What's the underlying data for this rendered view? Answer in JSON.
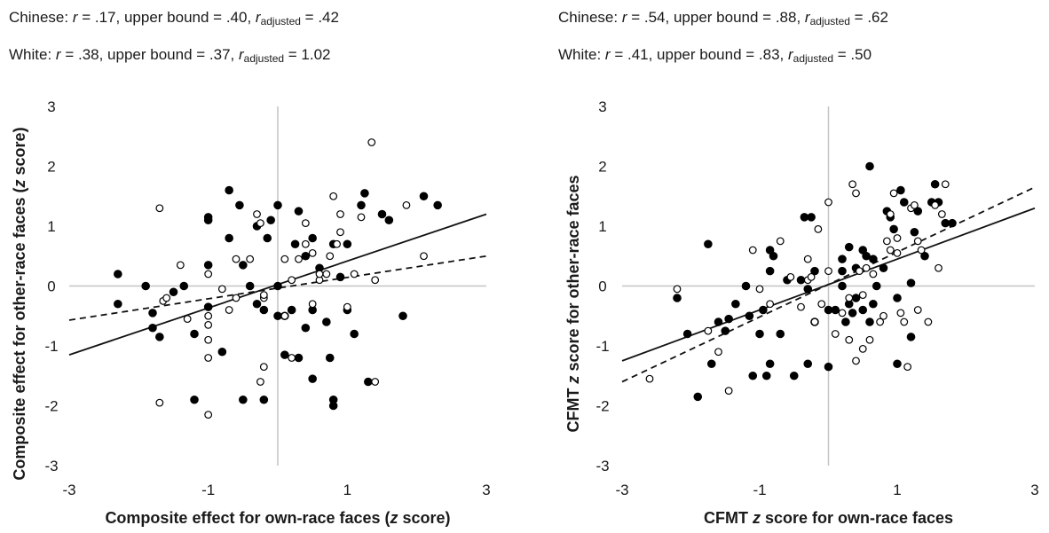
{
  "panels": [
    {
      "stats": [
        {
          "group": "Chinese",
          "r": ".17",
          "upper": ".40",
          "radj": ".42"
        },
        {
          "group": "White",
          "r": ".38",
          "upper": ".37",
          "radj": "1.02"
        }
      ],
      "labels": {
        "r": "r",
        "eq": " = ",
        "upper": ", upper bound = ",
        "adj_sub": "adjusted"
      }
    },
    {
      "stats": [
        {
          "group": "Chinese",
          "r": ".54",
          "upper": ".88",
          "radj": ".62"
        },
        {
          "group": "White",
          "r": ".41",
          "upper": ".83",
          "radj": ".50"
        }
      ],
      "labels": {
        "r": "r",
        "eq": " = ",
        "upper": ", upper bound = ",
        "adj_sub": "adjusted"
      }
    }
  ],
  "chart_data": [
    {
      "type": "scatter",
      "xlabel": "Composite effect for own-race faces (z score)",
      "ylabel": "Composite effect for other-race faces (z score)",
      "xlim": [
        -3,
        3
      ],
      "ylim": [
        -3,
        3
      ],
      "xticks": [
        -3,
        -1,
        1,
        3
      ],
      "yticks": [
        3,
        2,
        1,
        0,
        -1,
        -2,
        -3
      ],
      "series": [
        {
          "marker": "filled",
          "points": [
            [
              -2.3,
              0.2
            ],
            [
              -2.3,
              -0.3
            ],
            [
              -1.9,
              0.0
            ],
            [
              -1.8,
              -0.45
            ],
            [
              -1.8,
              -0.7
            ],
            [
              -1.7,
              -0.85
            ],
            [
              -1.5,
              -0.1
            ],
            [
              -1.35,
              0.0
            ],
            [
              -1.2,
              -1.9
            ],
            [
              -1.2,
              -0.8
            ],
            [
              -1.0,
              1.15
            ],
            [
              -1.0,
              1.1
            ],
            [
              -1.0,
              0.35
            ],
            [
              -1.0,
              -0.35
            ],
            [
              -0.8,
              -1.1
            ],
            [
              -0.7,
              1.6
            ],
            [
              -0.7,
              0.8
            ],
            [
              -0.55,
              1.35
            ],
            [
              -0.5,
              0.35
            ],
            [
              -0.5,
              -1.9
            ],
            [
              -0.4,
              0.0
            ],
            [
              -0.3,
              -0.3
            ],
            [
              -0.3,
              1.0
            ],
            [
              -0.2,
              -1.9
            ],
            [
              -0.2,
              -0.4
            ],
            [
              -0.15,
              0.8
            ],
            [
              -0.1,
              1.1
            ],
            [
              0.0,
              1.35
            ],
            [
              0.0,
              0.0
            ],
            [
              0.0,
              -0.5
            ],
            [
              0.1,
              -0.5
            ],
            [
              0.1,
              -1.15
            ],
            [
              0.2,
              -0.4
            ],
            [
              0.25,
              0.7
            ],
            [
              0.3,
              -1.2
            ],
            [
              0.3,
              1.25
            ],
            [
              0.4,
              -0.7
            ],
            [
              0.4,
              0.5
            ],
            [
              0.5,
              -1.55
            ],
            [
              0.5,
              -0.4
            ],
            [
              0.5,
              0.8
            ],
            [
              0.6,
              0.3
            ],
            [
              0.7,
              -0.6
            ],
            [
              0.75,
              -1.2
            ],
            [
              0.8,
              -1.9
            ],
            [
              0.8,
              -2.0
            ],
            [
              0.8,
              0.7
            ],
            [
              0.9,
              0.15
            ],
            [
              1.0,
              0.7
            ],
            [
              1.0,
              -0.4
            ],
            [
              1.1,
              -0.8
            ],
            [
              1.2,
              1.35
            ],
            [
              1.25,
              1.55
            ],
            [
              1.3,
              -1.6
            ],
            [
              1.5,
              1.2
            ],
            [
              1.6,
              1.1
            ],
            [
              1.8,
              -0.5
            ],
            [
              2.1,
              1.5
            ],
            [
              2.3,
              1.35
            ]
          ]
        },
        {
          "marker": "open",
          "points": [
            [
              -1.7,
              1.3
            ],
            [
              -1.7,
              -1.95
            ],
            [
              -1.65,
              -0.25
            ],
            [
              -1.6,
              -0.2
            ],
            [
              -1.4,
              0.35
            ],
            [
              -1.3,
              -0.55
            ],
            [
              -1.0,
              -0.5
            ],
            [
              -1.0,
              -0.65
            ],
            [
              -1.0,
              0.2
            ],
            [
              -1.0,
              -0.9
            ],
            [
              -1.0,
              -1.2
            ],
            [
              -1.0,
              -2.15
            ],
            [
              -0.8,
              -0.05
            ],
            [
              -0.7,
              -0.4
            ],
            [
              -0.6,
              0.45
            ],
            [
              -0.6,
              -0.2
            ],
            [
              -0.4,
              0.45
            ],
            [
              -0.3,
              1.2
            ],
            [
              -0.25,
              1.05
            ],
            [
              -0.2,
              -0.2
            ],
            [
              -0.2,
              -0.15
            ],
            [
              -0.2,
              -1.35
            ],
            [
              -0.25,
              -1.6
            ],
            [
              0.1,
              0.45
            ],
            [
              0.1,
              -0.5
            ],
            [
              0.2,
              0.1
            ],
            [
              0.2,
              -1.2
            ],
            [
              0.3,
              0.45
            ],
            [
              0.4,
              1.05
            ],
            [
              0.4,
              0.7
            ],
            [
              0.5,
              -0.3
            ],
            [
              0.5,
              0.55
            ],
            [
              0.6,
              0.1
            ],
            [
              0.6,
              0.2
            ],
            [
              0.7,
              0.2
            ],
            [
              0.75,
              0.5
            ],
            [
              0.8,
              1.5
            ],
            [
              0.85,
              0.7
            ],
            [
              0.9,
              1.2
            ],
            [
              0.9,
              0.9
            ],
            [
              1.0,
              -0.35
            ],
            [
              1.1,
              0.2
            ],
            [
              1.2,
              1.15
            ],
            [
              1.35,
              2.4
            ],
            [
              1.4,
              -1.6
            ],
            [
              1.4,
              0.1
            ],
            [
              1.85,
              1.35
            ],
            [
              2.1,
              0.5
            ]
          ]
        }
      ],
      "fit_lines": [
        {
          "style": "solid",
          "from": [
            -3,
            -1.15
          ],
          "to": [
            3,
            1.2
          ]
        },
        {
          "style": "dashed",
          "from": [
            -3,
            -0.57
          ],
          "to": [
            3,
            0.5
          ]
        }
      ]
    },
    {
      "type": "scatter",
      "xlabel": "CFMT z score for own-race faces",
      "ylabel": "CFMT z score for other-race faces",
      "xlim": [
        -3,
        3
      ],
      "ylim": [
        -3,
        3
      ],
      "xticks": [
        -3,
        -1,
        1,
        3
      ],
      "yticks": [
        3,
        2,
        1,
        0,
        -1,
        -2,
        -3
      ],
      "series": [
        {
          "marker": "filled",
          "points": [
            [
              -2.2,
              -0.2
            ],
            [
              -2.05,
              -0.8
            ],
            [
              -1.9,
              -1.85
            ],
            [
              -1.75,
              0.7
            ],
            [
              -1.7,
              -1.3
            ],
            [
              -1.6,
              -0.6
            ],
            [
              -1.5,
              -0.75
            ],
            [
              -1.45,
              -0.55
            ],
            [
              -1.35,
              -0.3
            ],
            [
              -1.2,
              0.0
            ],
            [
              -1.15,
              -0.5
            ],
            [
              -1.1,
              -1.5
            ],
            [
              -1.0,
              -0.8
            ],
            [
              -0.95,
              -0.4
            ],
            [
              -0.9,
              -1.5
            ],
            [
              -0.85,
              -1.3
            ],
            [
              -0.85,
              0.6
            ],
            [
              -0.85,
              0.25
            ],
            [
              -0.8,
              0.5
            ],
            [
              -0.7,
              -0.8
            ],
            [
              -0.6,
              0.1
            ],
            [
              -0.5,
              -1.5
            ],
            [
              -0.4,
              0.1
            ],
            [
              -0.3,
              -0.05
            ],
            [
              -0.3,
              -1.3
            ],
            [
              -0.35,
              1.15
            ],
            [
              -0.25,
              1.15
            ],
            [
              -0.2,
              0.25
            ],
            [
              -0.2,
              -0.6
            ],
            [
              0.0,
              -1.35
            ],
            [
              0.0,
              -0.4
            ],
            [
              0.1,
              -0.4
            ],
            [
              0.2,
              0.45
            ],
            [
              0.2,
              0.25
            ],
            [
              0.2,
              0.0
            ],
            [
              0.25,
              -0.6
            ],
            [
              0.3,
              -0.3
            ],
            [
              0.3,
              0.65
            ],
            [
              0.35,
              -0.45
            ],
            [
              0.4,
              0.3
            ],
            [
              0.4,
              -0.2
            ],
            [
              0.5,
              0.6
            ],
            [
              0.5,
              -0.4
            ],
            [
              0.55,
              0.5
            ],
            [
              0.6,
              -0.6
            ],
            [
              0.6,
              2.0
            ],
            [
              0.65,
              -0.3
            ],
            [
              0.65,
              0.45
            ],
            [
              0.7,
              0.0
            ],
            [
              0.8,
              0.3
            ],
            [
              0.85,
              1.25
            ],
            [
              0.9,
              1.15
            ],
            [
              0.95,
              0.95
            ],
            [
              1.0,
              -0.2
            ],
            [
              1.0,
              -1.3
            ],
            [
              1.05,
              1.6
            ],
            [
              1.1,
              1.4
            ],
            [
              1.2,
              0.05
            ],
            [
              1.2,
              -0.85
            ],
            [
              1.25,
              0.9
            ],
            [
              1.3,
              1.25
            ],
            [
              1.4,
              0.5
            ],
            [
              1.5,
              1.4
            ],
            [
              1.55,
              1.7
            ],
            [
              1.6,
              1.4
            ],
            [
              1.7,
              1.05
            ],
            [
              1.8,
              1.05
            ]
          ]
        },
        {
          "marker": "open",
          "points": [
            [
              -2.6,
              -1.55
            ],
            [
              -2.2,
              -0.05
            ],
            [
              -1.75,
              -0.75
            ],
            [
              -1.6,
              -1.1
            ],
            [
              -1.45,
              -1.75
            ],
            [
              -1.1,
              0.6
            ],
            [
              -1.0,
              -0.05
            ],
            [
              -0.85,
              -0.3
            ],
            [
              -0.7,
              0.75
            ],
            [
              -0.55,
              0.15
            ],
            [
              -0.4,
              -0.35
            ],
            [
              -0.3,
              0.45
            ],
            [
              -0.3,
              0.1
            ],
            [
              -0.25,
              0.15
            ],
            [
              -0.2,
              -0.6
            ],
            [
              -0.15,
              0.95
            ],
            [
              -0.1,
              -0.3
            ],
            [
              0.0,
              1.4
            ],
            [
              0.0,
              0.25
            ],
            [
              0.1,
              -0.8
            ],
            [
              0.2,
              -0.45
            ],
            [
              0.3,
              -0.2
            ],
            [
              0.3,
              -0.9
            ],
            [
              0.35,
              1.7
            ],
            [
              0.4,
              1.55
            ],
            [
              0.4,
              -1.25
            ],
            [
              0.45,
              0.25
            ],
            [
              0.5,
              -0.15
            ],
            [
              0.5,
              -1.05
            ],
            [
              0.55,
              0.3
            ],
            [
              0.6,
              -0.9
            ],
            [
              0.65,
              0.2
            ],
            [
              0.75,
              -0.6
            ],
            [
              0.8,
              -0.5
            ],
            [
              0.85,
              0.75
            ],
            [
              0.9,
              0.6
            ],
            [
              0.9,
              1.2
            ],
            [
              0.95,
              1.55
            ],
            [
              1.0,
              0.8
            ],
            [
              1.0,
              0.55
            ],
            [
              1.05,
              -0.45
            ],
            [
              1.1,
              -0.6
            ],
            [
              1.15,
              -1.35
            ],
            [
              1.2,
              1.3
            ],
            [
              1.25,
              1.35
            ],
            [
              1.3,
              0.75
            ],
            [
              1.3,
              -0.4
            ],
            [
              1.35,
              0.6
            ],
            [
              1.45,
              -0.6
            ],
            [
              1.55,
              1.35
            ],
            [
              1.6,
              0.3
            ],
            [
              1.65,
              1.2
            ],
            [
              1.7,
              1.7
            ]
          ]
        }
      ],
      "fit_lines": [
        {
          "style": "solid",
          "from": [
            -3,
            -1.25
          ],
          "to": [
            3,
            1.3
          ]
        },
        {
          "style": "dashed",
          "from": [
            -3,
            -1.6
          ],
          "to": [
            3,
            1.65
          ]
        }
      ]
    }
  ]
}
